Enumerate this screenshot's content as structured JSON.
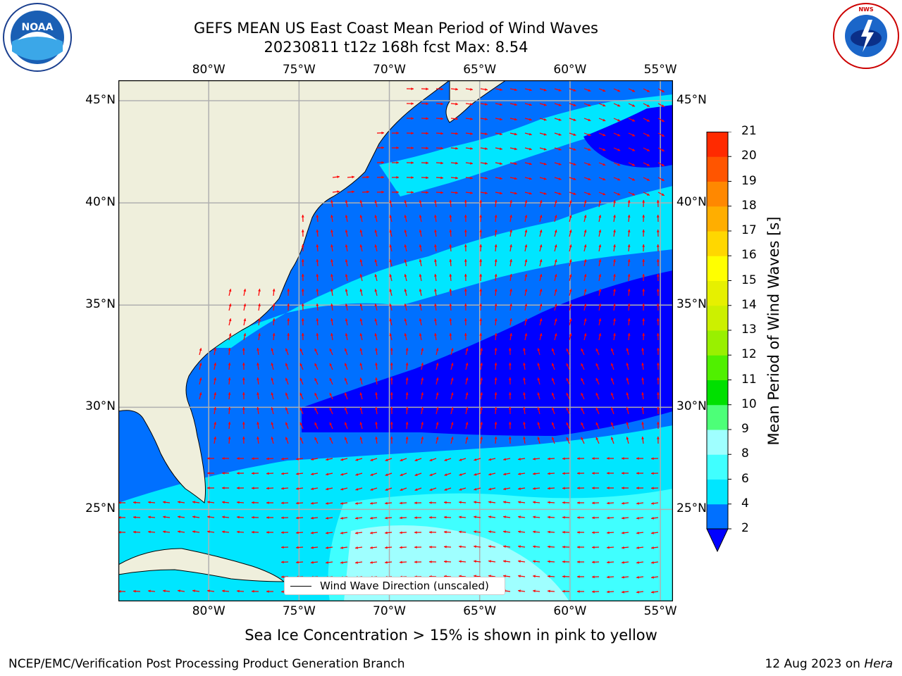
{
  "title": {
    "line1": "GEFS MEAN US East Coast Mean Period of Wind Waves",
    "line2": "20230811 t12z 168h fcst   Max: 8.54"
  },
  "logos": {
    "left": {
      "name": "noaa-logo",
      "text": "NOAA"
    },
    "right": {
      "name": "national-weather-service-logo",
      "text": "NATIONAL WEATHER SERVICE"
    }
  },
  "map": {
    "lon_labels": [
      "80°W",
      "75°W",
      "70°W",
      "65°W",
      "60°W",
      "55°W"
    ],
    "lat_labels": [
      "45°N",
      "40°N",
      "35°N",
      "30°N",
      "25°N"
    ],
    "lon_range": [
      -85,
      -54.3
    ],
    "lat_range": [
      20.5,
      46
    ],
    "legend_label": "Wind Wave Direction (unscaled)",
    "colors": {
      "land": "#efefdc",
      "grid": "#b0b0b0",
      "arrow": "#ff0000",
      "coast": "#000000"
    }
  },
  "colorbar": {
    "label": "Mean Period of Wind Waves [s]",
    "levels": [
      "2",
      "4",
      "6",
      "8",
      "9",
      "10",
      "11",
      "12",
      "13",
      "14",
      "15",
      "16",
      "17",
      "18",
      "19",
      "20",
      "21"
    ],
    "colors": [
      "#0070ff",
      "#00e6ff",
      "#40ffff",
      "#9fffff",
      "#4dff78",
      "#00e000",
      "#50f000",
      "#99f000",
      "#ccf000",
      "#e6f000",
      "#ffff00",
      "#ffd700",
      "#ffae00",
      "#ff8800",
      "#ff5500",
      "#ff2a00"
    ],
    "extend_color": "#0000ff"
  },
  "subtitle": "Sea Ice Concentration > 15% is shown in pink to yellow",
  "footer": {
    "left": "NCEP/EMC/Verification Post Processing Product Generation Branch",
    "right_date": "12 Aug 2023 on ",
    "right_host": "Hera"
  }
}
